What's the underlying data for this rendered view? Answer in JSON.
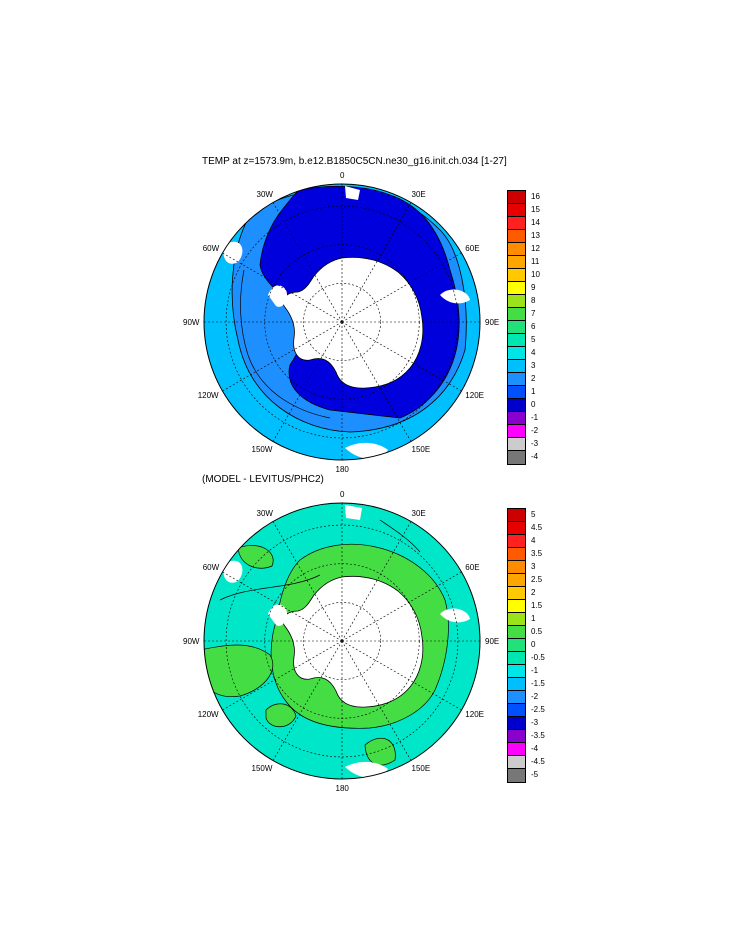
{
  "panels": [
    {
      "title": "TEMP at z=1573.9m, b.e12.B1850C5CN.ne30_g16.init.ch.034 [1-27]",
      "lon_labels": [
        "0",
        "30E",
        "60E",
        "90E",
        "120E",
        "150E",
        "180",
        "150W",
        "120W",
        "90W",
        "60W",
        "30W"
      ],
      "colorbar": {
        "ticks": [
          "16",
          "15",
          "14",
          "13",
          "12",
          "11",
          "10",
          "9",
          "8",
          "7",
          "6",
          "5",
          "4",
          "3",
          "2",
          "1",
          "0",
          "-1",
          "-2",
          "-3",
          "-4"
        ],
        "colors": [
          "#cc0000",
          "#e60000",
          "#ff2020",
          "#ff5a00",
          "#ff8c00",
          "#ffa500",
          "#ffc800",
          "#ffff00",
          "#9be21a",
          "#44dd44",
          "#22e07a",
          "#00e6b0",
          "#00e6e6",
          "#00bfff",
          "#1e8fff",
          "#0050ff",
          "#0000cc",
          "#8a00cc",
          "#ff00ff",
          "#cccccc",
          "#777777"
        ]
      }
    },
    {
      "title": "(MODEL - LEVITUS/PHC2)",
      "lon_labels": [
        "0",
        "30E",
        "60E",
        "90E",
        "120E",
        "150E",
        "180",
        "150W",
        "120W",
        "90W",
        "60W",
        "30W"
      ],
      "colorbar": {
        "ticks": [
          "5",
          "4.5",
          "4",
          "3.5",
          "3",
          "2.5",
          "2",
          "1.5",
          "1",
          "0.5",
          "0",
          "-0.5",
          "-1",
          "-1.5",
          "-2",
          "-2.5",
          "-3",
          "-3.5",
          "-4",
          "-4.5",
          "-5"
        ],
        "colors": [
          "#cc0000",
          "#e60000",
          "#ff2020",
          "#ff5a00",
          "#ff8c00",
          "#ffa500",
          "#ffc800",
          "#ffff00",
          "#9be21a",
          "#44dd44",
          "#22e07a",
          "#00e6b0",
          "#00e6e6",
          "#00bfff",
          "#1e8fff",
          "#0050ff",
          "#0000cc",
          "#8a00cc",
          "#ff00ff",
          "#cccccc",
          "#777777"
        ]
      }
    }
  ],
  "map_fills": {
    "ocean_top_outer": "#00bfff",
    "ocean_top_mid": "#1e8fff",
    "ocean_top_inner": "#0000dd",
    "ocean_bot_main": "#00e6c8",
    "ocean_bot_green": "#44dd44",
    "land": "#ffffff"
  }
}
